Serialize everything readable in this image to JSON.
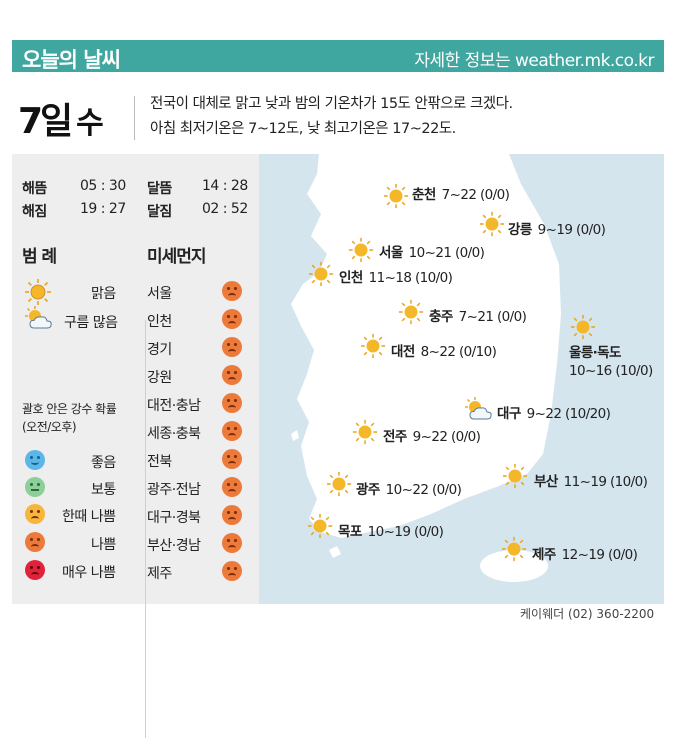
{
  "header": {
    "title": "오늘의 날씨",
    "url_text": "자세한 정보는 weather.mk.co.kr"
  },
  "date": {
    "day": "7일",
    "weekday": "수"
  },
  "summary": {
    "line1": "전국이 대체로 맑고 낮과 밤의 기온차가 15도 안팎으로 크겠다.",
    "line2": "아침 최저기온은 7~12도, 낮 최고기온은 17~22도."
  },
  "astro": {
    "sunrise_label": "해뜸",
    "sunrise": "05 : 30",
    "sunset_label": "해짐",
    "sunset": "19 : 27",
    "moonrise_label": "달뜸",
    "moonrise": "14 : 28",
    "moonset_label": "달짐",
    "moonset": "02 : 52"
  },
  "legend": {
    "title": "범 례",
    "items": [
      {
        "label": "맑음",
        "icon": "sun-icon"
      },
      {
        "label": "구름 많음",
        "icon": "cloud-sun-icon"
      }
    ]
  },
  "precip_note": {
    "line1": "괄호 안은 강수 확률",
    "line2": "(오전/오후)"
  },
  "dust_scale": [
    {
      "label": "좋음",
      "level": "good"
    },
    {
      "label": "보통",
      "level": "normal"
    },
    {
      "label": "한때 나쁨",
      "level": "mid"
    },
    {
      "label": "나쁨",
      "level": "bad"
    },
    {
      "label": "매우 나쁨",
      "level": "worst"
    }
  ],
  "dust": {
    "title": "미세먼지",
    "regions": [
      {
        "name": "서울",
        "level": "bad"
      },
      {
        "name": "인천",
        "level": "bad"
      },
      {
        "name": "경기",
        "level": "bad"
      },
      {
        "name": "강원",
        "level": "bad"
      },
      {
        "name": "대전·충남",
        "level": "bad"
      },
      {
        "name": "세종·충북",
        "level": "bad"
      },
      {
        "name": "전북",
        "level": "bad"
      },
      {
        "name": "광주·전남",
        "level": "bad"
      },
      {
        "name": "대구·경북",
        "level": "bad"
      },
      {
        "name": "부산·경남",
        "level": "bad"
      },
      {
        "name": "제주",
        "level": "bad"
      }
    ]
  },
  "cities": [
    {
      "name": "춘천",
      "temp": "7~22 (0/0)",
      "icon": "sun-icon"
    },
    {
      "name": "강릉",
      "temp": "9~19 (0/0)",
      "icon": "sun-icon"
    },
    {
      "name": "서울",
      "temp": "10~21 (0/0)",
      "icon": "sun-icon"
    },
    {
      "name": "인천",
      "temp": "11~18 (10/0)",
      "icon": "sun-icon"
    },
    {
      "name": "충주",
      "temp": "7~21 (0/0)",
      "icon": "sun-icon"
    },
    {
      "name": "울릉·독도",
      "temp": "10~16 (10/0)",
      "icon": "sun-icon"
    },
    {
      "name": "대전",
      "temp": "8~22 (0/10)",
      "icon": "sun-icon"
    },
    {
      "name": "대구",
      "temp": "9~22 (10/20)",
      "icon": "cloud-sun-icon"
    },
    {
      "name": "전주",
      "temp": "9~22 (0/0)",
      "icon": "sun-icon"
    },
    {
      "name": "부산",
      "temp": "11~19 (10/0)",
      "icon": "sun-icon"
    },
    {
      "name": "광주",
      "temp": "10~22 (0/0)",
      "icon": "sun-icon"
    },
    {
      "name": "목포",
      "temp": "10~19 (0/0)",
      "icon": "sun-icon"
    },
    {
      "name": "제주",
      "temp": "12~19 (0/0)",
      "icon": "sun-icon"
    }
  ],
  "credit": "케이웨더 (02) 360-2200",
  "colors": {
    "header": "#3fa79f",
    "panel": "#eeeeee",
    "sea": "#d5e5ee",
    "land": "#ffffff",
    "sun": "#f5b72a"
  }
}
